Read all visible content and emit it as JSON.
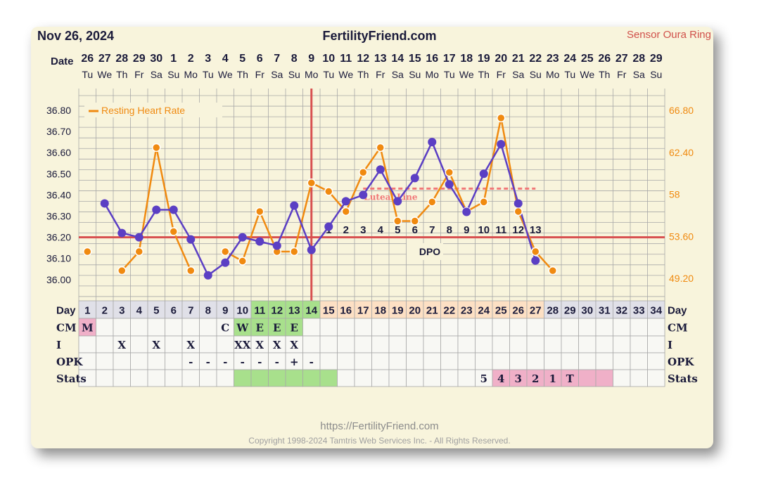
{
  "header": {
    "date": "Nov 26, 2024",
    "site": "FertilityFriend.com",
    "sensor": "Sensor Oura Ring"
  },
  "footer": {
    "url": "https://FertilityFriend.com",
    "copyright": "Copyright 1998-2024 Tamtris Web Services Inc. - All Rights Reserved."
  },
  "colors": {
    "temp_line": "#5b3fc4",
    "rhr_line": "#f08a10",
    "coverline": "#d85050",
    "luteal": "#f07878",
    "grid": "#a8a8a8",
    "pink": "#f0b0c8",
    "green": "#a8e08c",
    "peach": "#fde0c4",
    "gray_cell": "#e0e0e8"
  },
  "chart_data": {
    "type": "line",
    "row_labels": {
      "date": "Date",
      "day": "Day",
      "cm": "CM",
      "i": "I",
      "opk": "OPK",
      "stats": "Stats"
    },
    "dates": [
      "26",
      "27",
      "28",
      "29",
      "30",
      "1",
      "2",
      "3",
      "4",
      "5",
      "6",
      "7",
      "8",
      "9",
      "10",
      "11",
      "12",
      "13",
      "14",
      "15",
      "16",
      "17",
      "18",
      "19",
      "20",
      "21",
      "22",
      "23",
      "24",
      "25",
      "26",
      "27",
      "28",
      "29"
    ],
    "weekdays": [
      "Tu",
      "We",
      "Th",
      "Fr",
      "Sa",
      "Su",
      "Mo",
      "Tu",
      "We",
      "Th",
      "Fr",
      "Sa",
      "Su",
      "Mo",
      "Tu",
      "We",
      "Th",
      "Fr",
      "Sa",
      "Su",
      "Mo",
      "Tu",
      "We",
      "Th",
      "Fr",
      "Sa",
      "Su",
      "Mo",
      "Tu",
      "We",
      "Th",
      "Fr",
      "Sa",
      "Su"
    ],
    "cycle_days": [
      "1",
      "2",
      "3",
      "4",
      "5",
      "6",
      "7",
      "8",
      "9",
      "10",
      "11",
      "12",
      "13",
      "14",
      "15",
      "16",
      "17",
      "18",
      "19",
      "20",
      "21",
      "22",
      "23",
      "24",
      "25",
      "26",
      "27",
      "28",
      "29",
      "30",
      "31",
      "32",
      "33",
      "34"
    ],
    "day_cell_colors": [
      "gray",
      "gray",
      "gray",
      "gray",
      "gray",
      "gray",
      "gray",
      "gray",
      "gray",
      "gray",
      "green",
      "green",
      "green",
      "green",
      "peach",
      "peach",
      "peach",
      "peach",
      "peach",
      "peach",
      "peach",
      "peach",
      "peach",
      "peach",
      "peach",
      "peach",
      "peach",
      "gray",
      "gray",
      "gray",
      "gray",
      "gray",
      "gray",
      "gray"
    ],
    "cm": [
      "M",
      "",
      "",
      "",
      "",
      "",
      "",
      "",
      "C",
      "W",
      "E",
      "E",
      "E",
      "",
      "",
      "",
      "",
      "",
      "",
      "",
      "",
      "",
      "",
      "",
      "",
      "",
      "",
      "",
      "",
      "",
      "",
      "",
      "",
      ""
    ],
    "cm_colors": [
      "pink",
      "",
      "",
      "",
      "",
      "",
      "",
      "",
      "",
      "green",
      "green",
      "green",
      "green",
      "",
      "",
      "",
      "",
      "",
      "",
      "",
      "",
      "",
      "",
      "",
      "",
      "",
      "",
      "",
      "",
      "",
      "",
      "",
      "",
      ""
    ],
    "intercourse": [
      "",
      "",
      "X",
      "",
      "X",
      "",
      "X",
      "",
      "",
      "XX",
      "X",
      "X",
      "X",
      "",
      "",
      "",
      "",
      "",
      "",
      "",
      "",
      "",
      "",
      "",
      "",
      "",
      "",
      "",
      "",
      "",
      "",
      "",
      "",
      ""
    ],
    "opk": [
      "",
      "",
      "",
      "",
      "",
      "",
      "-",
      "-",
      "-",
      "-",
      "-",
      "-",
      "+",
      "-",
      "",
      "",
      "",
      "",
      "",
      "",
      "",
      "",
      "",
      "",
      "",
      "",
      "",
      "",
      "",
      "",
      "",
      "",
      "",
      ""
    ],
    "stats": [
      "",
      "",
      "",
      "",
      "",
      "",
      "",
      "",
      "",
      "",
      "",
      "",
      "",
      "",
      "",
      "",
      "",
      "",
      "",
      "",
      "",
      "",
      "",
      "5",
      "4",
      "3",
      "2",
      "1",
      "T",
      "",
      "",
      "",
      "",
      ""
    ],
    "stats_colors": [
      "",
      "",
      "",
      "",
      "",
      "",
      "",
      "",
      "",
      "green",
      "green",
      "green",
      "green",
      "green",
      "green",
      "",
      "",
      "",
      "",
      "",
      "",
      "",
      "",
      "",
      "pink",
      "pink",
      "pink",
      "pink",
      "pink",
      "pink",
      "pink",
      "",
      "",
      ""
    ],
    "temp_axis": {
      "min": 36.0,
      "max": 36.8,
      "ticks": [
        "36.80",
        "36.70",
        "36.60",
        "36.50",
        "36.40",
        "36.30",
        "36.20",
        "36.10",
        "36.00"
      ]
    },
    "rhr_axis": {
      "ticks": [
        "66.80",
        "62.40",
        "58",
        "53.60",
        "49.20"
      ]
    },
    "temperature": [
      null,
      36.36,
      36.22,
      36.2,
      36.33,
      36.33,
      36.19,
      36.02,
      36.08,
      36.2,
      36.18,
      36.16,
      36.35,
      36.14,
      36.25,
      36.37,
      36.4,
      36.52,
      36.37,
      36.48,
      36.65,
      36.45,
      36.32,
      36.5,
      36.64,
      36.36,
      36.09,
      null,
      null,
      null,
      null,
      null,
      null,
      null
    ],
    "resting_heart_rate": [
      52.0,
      null,
      50.0,
      52.0,
      62.9,
      54.1,
      50.0,
      null,
      52.0,
      51.0,
      56.2,
      52.0,
      52.0,
      59.2,
      58.3,
      56.2,
      60.3,
      62.9,
      55.2,
      55.2,
      57.2,
      60.3,
      56.2,
      57.2,
      66.0,
      56.2,
      52.0,
      50.0,
      null,
      null,
      null,
      null,
      null,
      null
    ],
    "series": [
      {
        "name": "Resting Heart Rate",
        "axis": "right"
      }
    ],
    "coverline": 36.2,
    "ovulation_day": "14",
    "luteal_label": "Luteal Line",
    "luteal_value": 36.43,
    "dpo_label": "DPO",
    "dpo": [
      "1",
      "2",
      "3",
      "4",
      "5",
      "6",
      "7",
      "8",
      "9",
      "10",
      "11",
      "12",
      "13"
    ]
  }
}
